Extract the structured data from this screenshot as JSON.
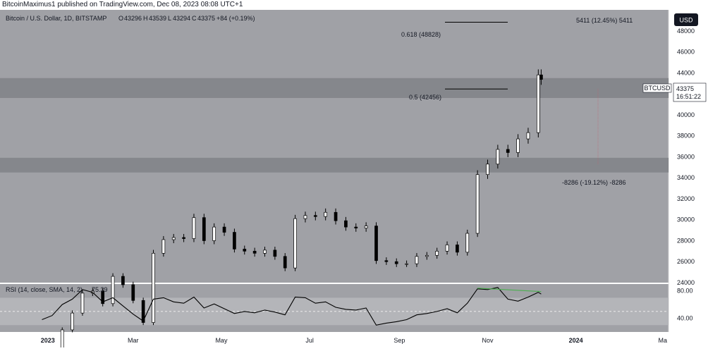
{
  "header": {
    "published": "BitcoinMaximus1 published on TradingView.com, Dec 08, 2023 08:08 UTC+1"
  },
  "legend": {
    "symbol": "Bitcoin / U.S. Dollar, 1D, BITSTAMP",
    "o_label": "O",
    "o_value": "43296",
    "h_label": "H",
    "h_value": "43539",
    "l_label": "L",
    "l_value": "43294",
    "c_label": "C",
    "c_value": "43375",
    "change": "+84 (+0.19%)"
  },
  "rsi_legend": "RSI (14, close, SMA, 14, 2)",
  "rsi_value": "75.39",
  "currency_button": "USD",
  "ticker": {
    "symbol": "BTCUSD",
    "price": "43375",
    "countdown": "16:51:22"
  },
  "annotations": {
    "fib_618": "0.618 (48828)",
    "fib_5": "0.5 (42456)",
    "measure_up": "5411 (12.45%) 5411",
    "measure_down": "-8286 (-19.12%) -8286"
  },
  "colors": {
    "background": "#a0a1a6",
    "zone": "#85878c",
    "rsi_band": "#b4b5b9",
    "candle": "#000000",
    "divergence": "#4caf50",
    "ticker_bg": "#ffffff",
    "usd_bg": "#131722"
  },
  "chart_data": [
    {
      "type": "candlestick",
      "title": "Bitcoin / U.S. Dollar, 1D, BITSTAMP",
      "x": [
        "2022-12-28",
        "2023-01-04",
        "2023-01-11",
        "2023-01-18",
        "2023-01-25",
        "2023-02-01",
        "2023-02-08",
        "2023-02-15",
        "2023-02-22",
        "2023-03-01",
        "2023-03-08",
        "2023-03-15",
        "2023-03-22",
        "2023-03-29",
        "2023-04-05",
        "2023-04-12",
        "2023-04-19",
        "2023-04-26",
        "2023-05-03",
        "2023-05-10",
        "2023-05-17",
        "2023-05-24",
        "2023-05-31",
        "2023-06-07",
        "2023-06-14",
        "2023-06-21",
        "2023-06-28",
        "2023-07-05",
        "2023-07-12",
        "2023-07-19",
        "2023-07-26",
        "2023-08-02",
        "2023-08-09",
        "2023-08-16",
        "2023-08-23",
        "2023-08-30",
        "2023-09-06",
        "2023-09-13",
        "2023-09-20",
        "2023-09-27",
        "2023-10-04",
        "2023-10-11",
        "2023-10-18",
        "2023-10-25",
        "2023-11-01",
        "2023-11-08",
        "2023-11-15",
        "2023-11-22",
        "2023-11-29",
        "2023-12-06",
        "2023-12-08"
      ],
      "close": [
        16600,
        17200,
        19500,
        21100,
        23000,
        23200,
        22000,
        24600,
        23800,
        22300,
        20200,
        26800,
        28100,
        28300,
        28200,
        30200,
        28000,
        29300,
        28800,
        27200,
        27000,
        26800,
        27100,
        26500,
        25400,
        30100,
        30400,
        30300,
        30700,
        29900,
        29300,
        29200,
        29400,
        26100,
        26000,
        25800,
        25800,
        26500,
        26600,
        27000,
        27600,
        26900,
        28700,
        34300,
        35300,
        36700,
        36400,
        37700,
        38300,
        43800,
        43375
      ],
      "ylim": [
        24000,
        50000
      ],
      "y_ticks": [
        24000,
        26000,
        28000,
        30000,
        32000,
        34000,
        36000,
        38000,
        40000,
        42000,
        44000,
        46000,
        48000
      ],
      "x_ticks": [
        "2023",
        "Mar",
        "May",
        "Jul",
        "Sep",
        "Nov",
        "2024",
        "Ma"
      ],
      "zones": [
        [
          41600,
          43500
        ],
        [
          34500,
          35900
        ]
      ],
      "fib_levels": [
        {
          "label": "0.618 (48828)",
          "value": 48828
        },
        {
          "label": "0.5 (42456)",
          "value": 42456
        }
      ],
      "current_price": 43375
    },
    {
      "type": "line",
      "title": "RSI (14, close, SMA, 14, 2)",
      "x": [
        "2022-12-28",
        "2023-01-04",
        "2023-01-11",
        "2023-01-18",
        "2023-01-25",
        "2023-02-01",
        "2023-02-08",
        "2023-02-15",
        "2023-02-22",
        "2023-03-01",
        "2023-03-08",
        "2023-03-15",
        "2023-03-22",
        "2023-03-29",
        "2023-04-05",
        "2023-04-12",
        "2023-04-19",
        "2023-04-26",
        "2023-05-03",
        "2023-05-10",
        "2023-05-17",
        "2023-05-24",
        "2023-05-31",
        "2023-06-07",
        "2023-06-14",
        "2023-06-21",
        "2023-06-28",
        "2023-07-05",
        "2023-07-12",
        "2023-07-19",
        "2023-07-26",
        "2023-08-02",
        "2023-08-09",
        "2023-08-16",
        "2023-08-23",
        "2023-08-30",
        "2023-09-06",
        "2023-09-13",
        "2023-09-20",
        "2023-09-27",
        "2023-10-04",
        "2023-10-11",
        "2023-10-18",
        "2023-10-25",
        "2023-11-01",
        "2023-11-08",
        "2023-11-15",
        "2023-11-22",
        "2023-11-29",
        "2023-12-06",
        "2023-12-08"
      ],
      "values": [
        38,
        44,
        60,
        68,
        82,
        78,
        64,
        70,
        58,
        46,
        36,
        68,
        70,
        64,
        62,
        71,
        55,
        61,
        54,
        47,
        50,
        48,
        52,
        49,
        45,
        71,
        70,
        62,
        64,
        56,
        53,
        52,
        55,
        30,
        33,
        35,
        38,
        45,
        47,
        50,
        54,
        48,
        62,
        83,
        82,
        85,
        68,
        65,
        71,
        78,
        75.39
      ],
      "ylim": [
        20,
        90
      ],
      "y_ticks": [
        40,
        80
      ],
      "bands": [
        70,
        30
      ],
      "midline": 50,
      "divergence": {
        "from": [
          "2023-10-25",
          84
        ],
        "to": [
          "2023-12-08",
          79
        ]
      }
    }
  ]
}
